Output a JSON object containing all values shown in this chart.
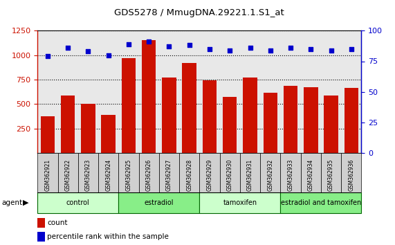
{
  "title": "GDS5278 / MmugDNA.29221.1.S1_at",
  "samples": [
    "GSM362921",
    "GSM362922",
    "GSM362923",
    "GSM362924",
    "GSM362925",
    "GSM362926",
    "GSM362927",
    "GSM362928",
    "GSM362929",
    "GSM362930",
    "GSM362931",
    "GSM362932",
    "GSM362933",
    "GSM362934",
    "GSM362935",
    "GSM362936"
  ],
  "counts": [
    375,
    590,
    500,
    390,
    970,
    1150,
    775,
    920,
    745,
    575,
    770,
    615,
    685,
    675,
    585,
    665
  ],
  "percentile_ranks": [
    79,
    86,
    83,
    80,
    89,
    91,
    87,
    88,
    85,
    84,
    86,
    84,
    86,
    85,
    84,
    85
  ],
  "bar_color": "#cc1100",
  "dot_color": "#0000cc",
  "groups": [
    {
      "label": "control",
      "start": 0,
      "end": 4,
      "color": "#ccffcc"
    },
    {
      "label": "estradiol",
      "start": 4,
      "end": 8,
      "color": "#88ee88"
    },
    {
      "label": "tamoxifen",
      "start": 8,
      "end": 12,
      "color": "#ccffcc"
    },
    {
      "label": "estradiol and tamoxifen",
      "start": 12,
      "end": 16,
      "color": "#88ee88"
    }
  ],
  "ylim_left": [
    0,
    1250
  ],
  "ylim_right": [
    0,
    100
  ],
  "yticks_left": [
    250,
    500,
    750,
    1000,
    1250
  ],
  "yticks_right": [
    0,
    25,
    50,
    75,
    100
  ],
  "plot_bg": "#e8e8e8",
  "sample_box_color": "#d0d0d0",
  "group_border_color": "#006600"
}
